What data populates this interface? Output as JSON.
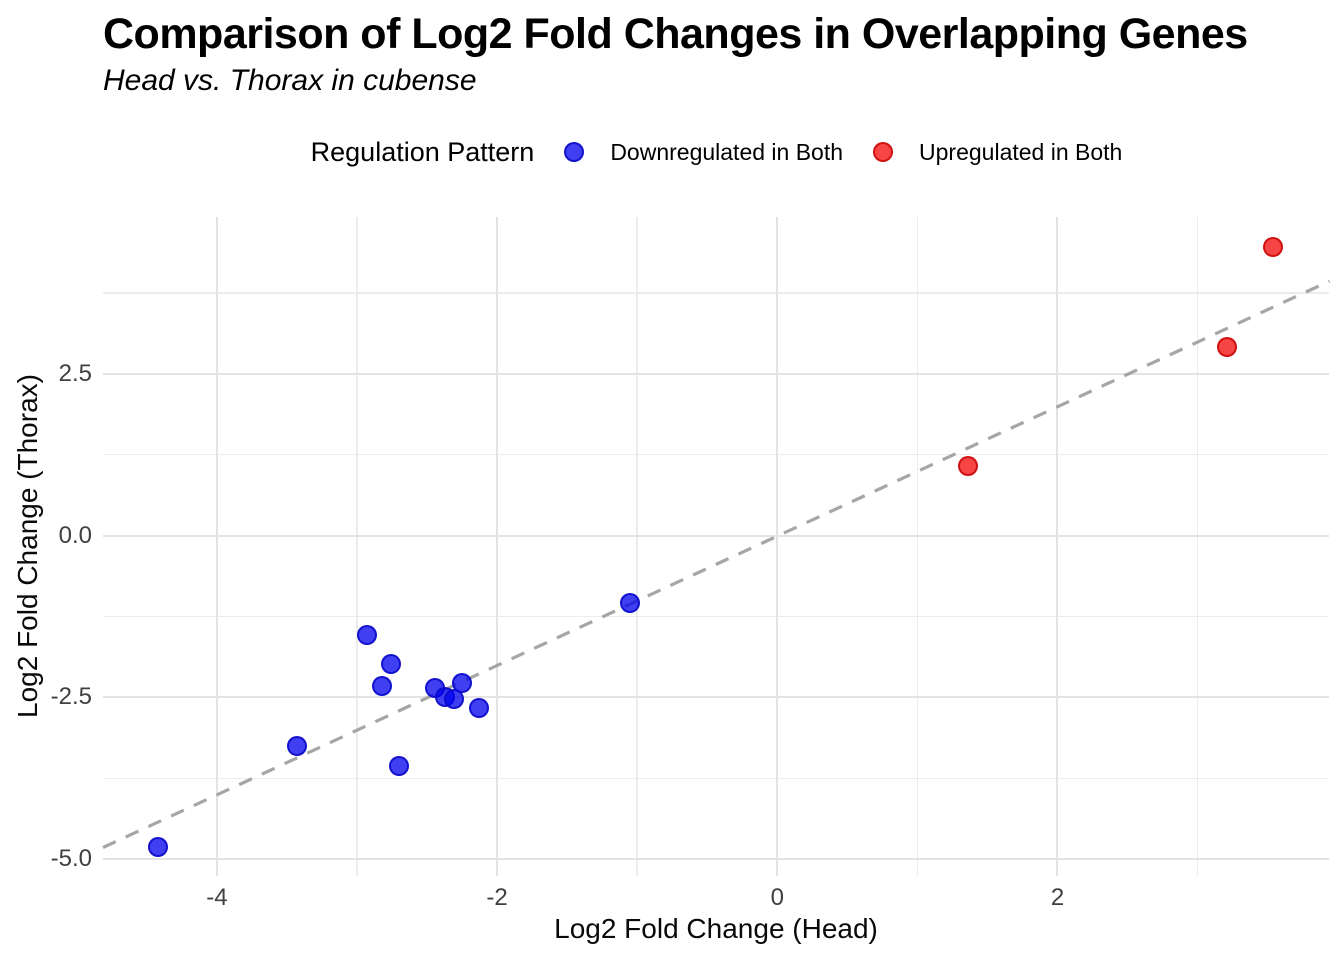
{
  "header": {
    "title": "Comparison of Log2 Fold Changes in Overlapping Genes",
    "subtitle": "Head vs. Thorax in cubense"
  },
  "legend": {
    "title": "Regulation Pattern",
    "position": "top",
    "items": [
      {
        "label": "Downregulated in Both",
        "fill": "rgba(0,0,238,0.75)",
        "stroke": "rgba(10,10,200,0.85)"
      },
      {
        "label": "Upregulated in Both",
        "fill": "rgba(242,22,22,0.8)",
        "stroke": "rgba(205,12,12,0.9)"
      }
    ]
  },
  "chart_data": {
    "type": "scatter",
    "title": "Comparison of Log2 Fold Changes in Overlapping Genes",
    "subtitle": "Head vs. Thorax in cubense",
    "xlabel": "Log2 Fold Change (Head)",
    "ylabel": "Log2 Fold Change (Thorax)",
    "xlim": [
      -4.815,
      3.94
    ],
    "ylim": [
      -5.26,
      4.93
    ],
    "grid": true,
    "x_major_ticks": [
      -4,
      -2,
      0,
      2
    ],
    "x_tick_labels": [
      "-4",
      "-2",
      "0",
      "2"
    ],
    "x_minor_ticks": [
      -3,
      -1,
      1,
      3
    ],
    "y_major_ticks": [
      2.5,
      0.0,
      -2.5,
      -5.0
    ],
    "y_tick_labels": [
      "2.5",
      "0.0",
      "-2.5",
      "-5.0"
    ],
    "y_minor_ticks": [
      3.75,
      1.25,
      -1.25,
      -3.75
    ],
    "reference_line": {
      "type": "identity y=x",
      "style": "dashed",
      "color": "#a6a6a6"
    },
    "series": [
      {
        "name": "Downregulated in Both",
        "fill": "rgba(0,0,238,0.75)",
        "stroke": "rgba(10,10,200,0.85)",
        "points": [
          [
            -4.42,
            -4.81
          ],
          [
            -3.43,
            -3.25
          ],
          [
            -2.93,
            -1.53
          ],
          [
            -2.82,
            -2.33
          ],
          [
            -2.76,
            -1.99
          ],
          [
            -2.7,
            -3.56
          ],
          [
            -2.44,
            -2.35
          ],
          [
            -2.37,
            -2.5
          ],
          [
            -2.31,
            -2.53
          ],
          [
            -2.25,
            -2.27
          ],
          [
            -2.13,
            -2.66
          ],
          [
            -1.05,
            -1.04
          ]
        ]
      },
      {
        "name": "Upregulated in Both",
        "fill": "rgba(242,22,22,0.8)",
        "stroke": "rgba(205,12,12,0.9)",
        "points": [
          [
            1.36,
            1.07
          ],
          [
            3.21,
            2.92
          ],
          [
            3.54,
            4.46
          ]
        ]
      }
    ]
  }
}
